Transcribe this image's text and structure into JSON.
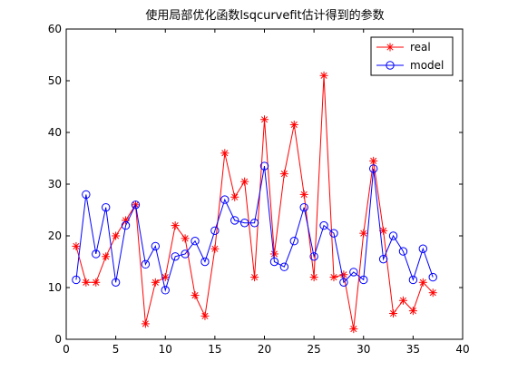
{
  "chart_data": {
    "type": "line",
    "title": "使用局部优化函数lsqcurvefit估计得到的参数",
    "xlabel": "",
    "ylabel": "",
    "xlim": [
      0,
      40
    ],
    "ylim": [
      0,
      60
    ],
    "xticks": [
      "0",
      "5",
      "10",
      "15",
      "20",
      "25",
      "30",
      "35",
      "40"
    ],
    "yticks": [
      "0",
      "10",
      "20",
      "30",
      "40",
      "50",
      "60"
    ],
    "grid": false,
    "legend_position": "top-right",
    "x": [
      1,
      2,
      3,
      4,
      5,
      6,
      7,
      8,
      9,
      10,
      11,
      12,
      13,
      14,
      15,
      16,
      17,
      18,
      19,
      20,
      21,
      22,
      23,
      24,
      25,
      26,
      27,
      28,
      29,
      30,
      31,
      32,
      33,
      34,
      35,
      36,
      37
    ],
    "series": [
      {
        "name": "real",
        "color": "#ff0000",
        "marker": "star",
        "values": [
          18.0,
          11.0,
          11.0,
          16.0,
          20.0,
          23.0,
          26.0,
          3.0,
          11.0,
          12.0,
          22.0,
          19.5,
          8.5,
          4.5,
          17.5,
          36.0,
          27.5,
          30.5,
          12.0,
          42.5,
          16.5,
          32.0,
          41.5,
          28.0,
          12.0,
          51.0,
          12.0,
          12.5,
          2.0,
          20.5,
          34.5,
          21.0,
          5.0,
          7.5,
          5.5,
          11.0,
          9.0
        ]
      },
      {
        "name": "model",
        "color": "#0000ff",
        "marker": "circle",
        "values": [
          11.5,
          28.0,
          16.5,
          25.5,
          11.0,
          22.0,
          26.0,
          14.5,
          18.0,
          9.5,
          16.0,
          16.5,
          19.0,
          15.0,
          21.0,
          27.0,
          23.0,
          22.5,
          22.5,
          33.5,
          15.0,
          14.0,
          19.0,
          25.5,
          16.0,
          22.0,
          20.5,
          11.0,
          13.0,
          11.5,
          33.0,
          15.5,
          20.0,
          17.0,
          11.5,
          17.5,
          12.0
        ]
      }
    ]
  }
}
